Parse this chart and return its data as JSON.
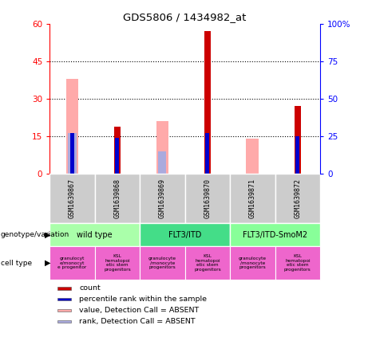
{
  "title": "GDS5806 / 1434982_at",
  "samples": [
    "GSM1639867",
    "GSM1639868",
    "GSM1639869",
    "GSM1639870",
    "GSM1639871",
    "GSM1639872"
  ],
  "count_values": [
    0,
    19,
    0,
    57,
    0,
    27
  ],
  "percentile_values": [
    27,
    24,
    0,
    27,
    0,
    25
  ],
  "absent_value_pink": [
    38,
    0,
    21,
    0,
    14,
    0
  ],
  "absent_rank_blue": [
    27,
    0,
    15,
    0,
    0,
    0
  ],
  "ylim_left": [
    0,
    60
  ],
  "ylim_right": [
    0,
    100
  ],
  "yticks_left": [
    0,
    15,
    30,
    45,
    60
  ],
  "yticks_right": [
    0,
    25,
    50,
    75,
    100
  ],
  "ytick_labels_left": [
    "0",
    "15",
    "30",
    "45",
    "60"
  ],
  "ytick_labels_right": [
    "0",
    "25",
    "50",
    "75",
    "100%"
  ],
  "genotype_groups": [
    {
      "label": "wild type",
      "span": [
        0,
        2
      ],
      "color": "#aaffaa"
    },
    {
      "label": "FLT3/ITD",
      "span": [
        2,
        4
      ],
      "color": "#44dd88"
    },
    {
      "label": "FLT3/ITD-SmoM2",
      "span": [
        4,
        6
      ],
      "color": "#88ff99"
    }
  ],
  "cell_type_labels_short": [
    "granulocyt\ne/monocyt\ne progenitor",
    "KSL\nhematopoi\netic stem\nprogenitors",
    "granulocyte\n/monocyte\nprogenitors",
    "KSL\nhematopoi\netic stem\nprogenitors",
    "granulocyte\n/monocyte\nprogenitors",
    "KSL\nhematopoi\netic stem\nprogenitors"
  ],
  "color_count": "#cc0000",
  "color_percentile": "#0000cc",
  "color_absent_value": "#ffaaaa",
  "color_absent_rank": "#aaaadd",
  "sample_bg_color": "#cccccc",
  "legend_items": [
    {
      "color": "#cc0000",
      "label": "count"
    },
    {
      "color": "#0000cc",
      "label": "percentile rank within the sample"
    },
    {
      "color": "#ffaaaa",
      "label": "value, Detection Call = ABSENT"
    },
    {
      "color": "#aaaadd",
      "label": "rank, Detection Call = ABSENT"
    }
  ]
}
